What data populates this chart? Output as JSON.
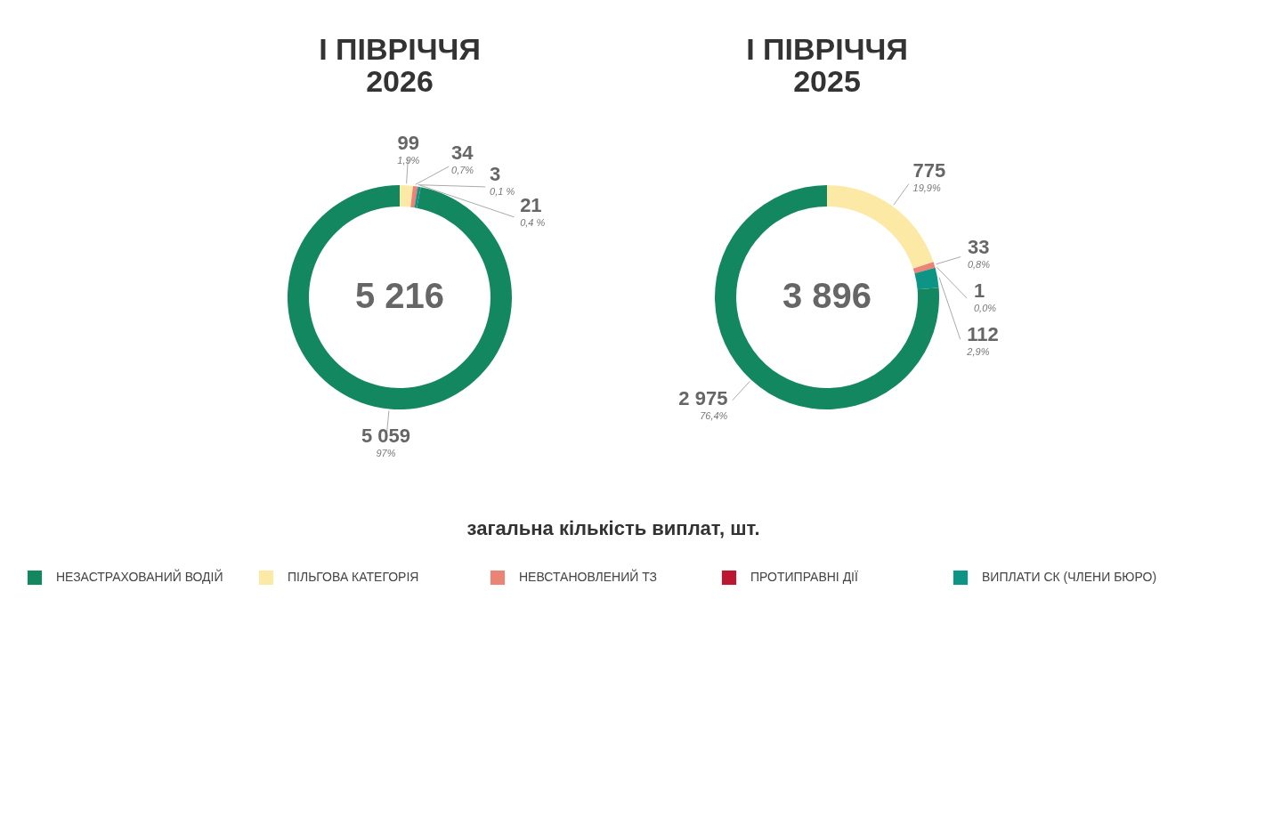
{
  "chart_data": [
    {
      "type": "donut",
      "title": [
        "І ПІВРІЧЧЯ",
        "2026"
      ],
      "categories": [
        "НЕЗАСТРАХОВАНИЙ ВОДІЙ",
        "ПІЛЬГОВА КАТЕГОРІЯ",
        "НЕВСТАНОВЛЕНИЙ ТЗ",
        "ПРОТИПРАВНІ ДІЇ",
        "ВИПЛАТИ СК (ЧЛЕНИ БЮРО)"
      ],
      "values": [
        5059,
        99,
        34,
        3,
        21
      ],
      "colors": [
        "#13875f",
        "#fde9a6",
        "#ec8377",
        "#bd1631",
        "#0e9484"
      ],
      "value_labels": [
        "5 059",
        "99",
        "34",
        "3",
        "21"
      ],
      "annotations": [
        "5 216",
        "97%",
        "1,9%",
        "0,7%",
        "0,1 %",
        "0,4 %"
      ],
      "legend": "bottom"
    },
    {
      "type": "donut",
      "title": [
        "І ПІВРІЧЧЯ",
        "2025"
      ],
      "values": [
        2975,
        775,
        33,
        1,
        112
      ],
      "colors": [
        "#13875f",
        "#fde9a6",
        "#ec8377",
        "#bd1631",
        "#0e9484"
      ],
      "value_labels": [
        "2 975",
        "775",
        "33",
        "1",
        "112"
      ],
      "annotations": [
        "3 896",
        "76,4%",
        "19,9%",
        "0,8%",
        "0,0%",
        "2,9%",
        "загальна кількість виплат, шт."
      ]
    }
  ]
}
